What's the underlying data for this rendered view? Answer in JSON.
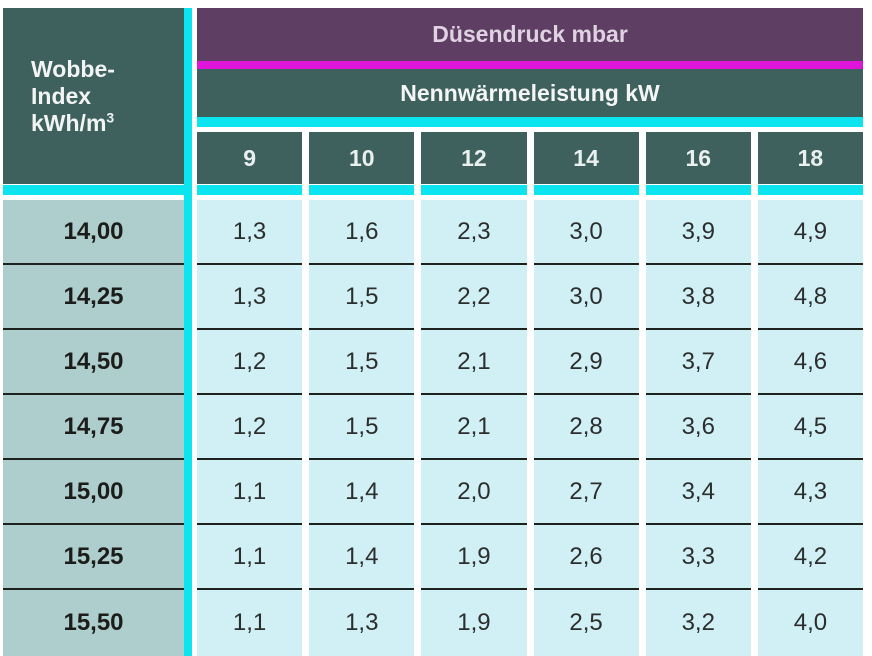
{
  "labels": {
    "corner_line1": "Wobbe-",
    "corner_line2": "Index",
    "corner_line3_base": "kWh/m",
    "corner_line3_sup": "3",
    "group_header": "Düsendruck mbar",
    "subgroup_header": "Nennwärmeleistung kW"
  },
  "colors": {
    "dark_teal": "#3e615e",
    "purple": "#5e3f63",
    "magenta": "#df16d9",
    "cyan": "#0ce4ef",
    "row_label_bg": "#adcecc",
    "data_cell_bg": "#d0f0f5",
    "separator": "#1d221f"
  },
  "chart_data": {
    "type": "table",
    "title": "Düsendruck mbar",
    "subtitle": "Nennwärmeleistung kW",
    "row_header": "Wobbe-Index kWh/m³",
    "columns": [
      "9",
      "10",
      "12",
      "14",
      "16",
      "18"
    ],
    "rows": [
      {
        "label": "14,00",
        "values": [
          "1,3",
          "1,6",
          "2,3",
          "3,0",
          "3,9",
          "4,9"
        ]
      },
      {
        "label": "14,25",
        "values": [
          "1,3",
          "1,5",
          "2,2",
          "3,0",
          "3,8",
          "4,8"
        ]
      },
      {
        "label": "14,50",
        "values": [
          "1,2",
          "1,5",
          "2,1",
          "2,9",
          "3,7",
          "4,6"
        ]
      },
      {
        "label": "14,75",
        "values": [
          "1,2",
          "1,5",
          "2,1",
          "2,8",
          "3,6",
          "4,5"
        ]
      },
      {
        "label": "15,00",
        "values": [
          "1,1",
          "1,4",
          "2,0",
          "2,7",
          "3,4",
          "4,3"
        ]
      },
      {
        "label": "15,25",
        "values": [
          "1,1",
          "1,4",
          "1,9",
          "2,6",
          "3,3",
          "4,2"
        ]
      },
      {
        "label": "15,50",
        "values": [
          "1,1",
          "1,3",
          "1,9",
          "2,5",
          "3,2",
          "4,0"
        ]
      }
    ]
  }
}
